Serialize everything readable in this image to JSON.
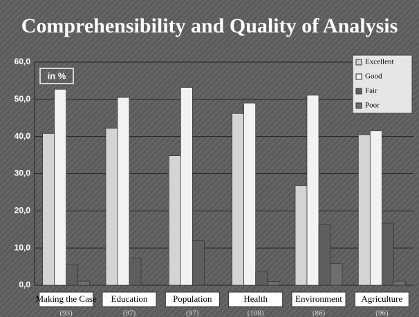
{
  "chart_data": {
    "type": "bar",
    "title": "Comprehensibility and Quality of Analysis",
    "annotation": "in %",
    "categories": [
      "Making the Case",
      "Education",
      "Population",
      "Health",
      "Environment",
      "Agriculture"
    ],
    "category_notes": [
      "(93)",
      "(97)",
      "(97)",
      "(108)",
      "(86)",
      "(96)"
    ],
    "series": [
      {
        "name": "Excellent",
        "color": "#d4d4d4",
        "values": [
          40.8,
          42.2,
          34.8,
          46.2,
          26.8,
          40.5
        ]
      },
      {
        "name": "Good",
        "color": "#f2f2f2",
        "values": [
          52.7,
          50.5,
          53.2,
          49.0,
          51.1,
          41.5
        ]
      },
      {
        "name": "Fair",
        "color": "#5e5e5e",
        "values": [
          5.5,
          7.3,
          12.0,
          3.8,
          16.3,
          16.7
        ]
      },
      {
        "name": "Poor",
        "color": "#6e6e6e",
        "values": [
          1.1,
          0,
          0,
          1.0,
          5.8,
          1.1
        ]
      }
    ],
    "ylim": [
      0,
      60
    ],
    "yticks": [
      {
        "value": 0,
        "label": "0,0"
      },
      {
        "value": 10,
        "label": "10,0"
      },
      {
        "value": 20,
        "label": "20,0"
      },
      {
        "value": 30,
        "label": "30,0"
      },
      {
        "value": 40,
        "label": "40,0"
      },
      {
        "value": 50,
        "label": "50,0"
      },
      {
        "value": 60,
        "label": "60,0"
      }
    ],
    "grid": true,
    "legend": "top-right"
  }
}
